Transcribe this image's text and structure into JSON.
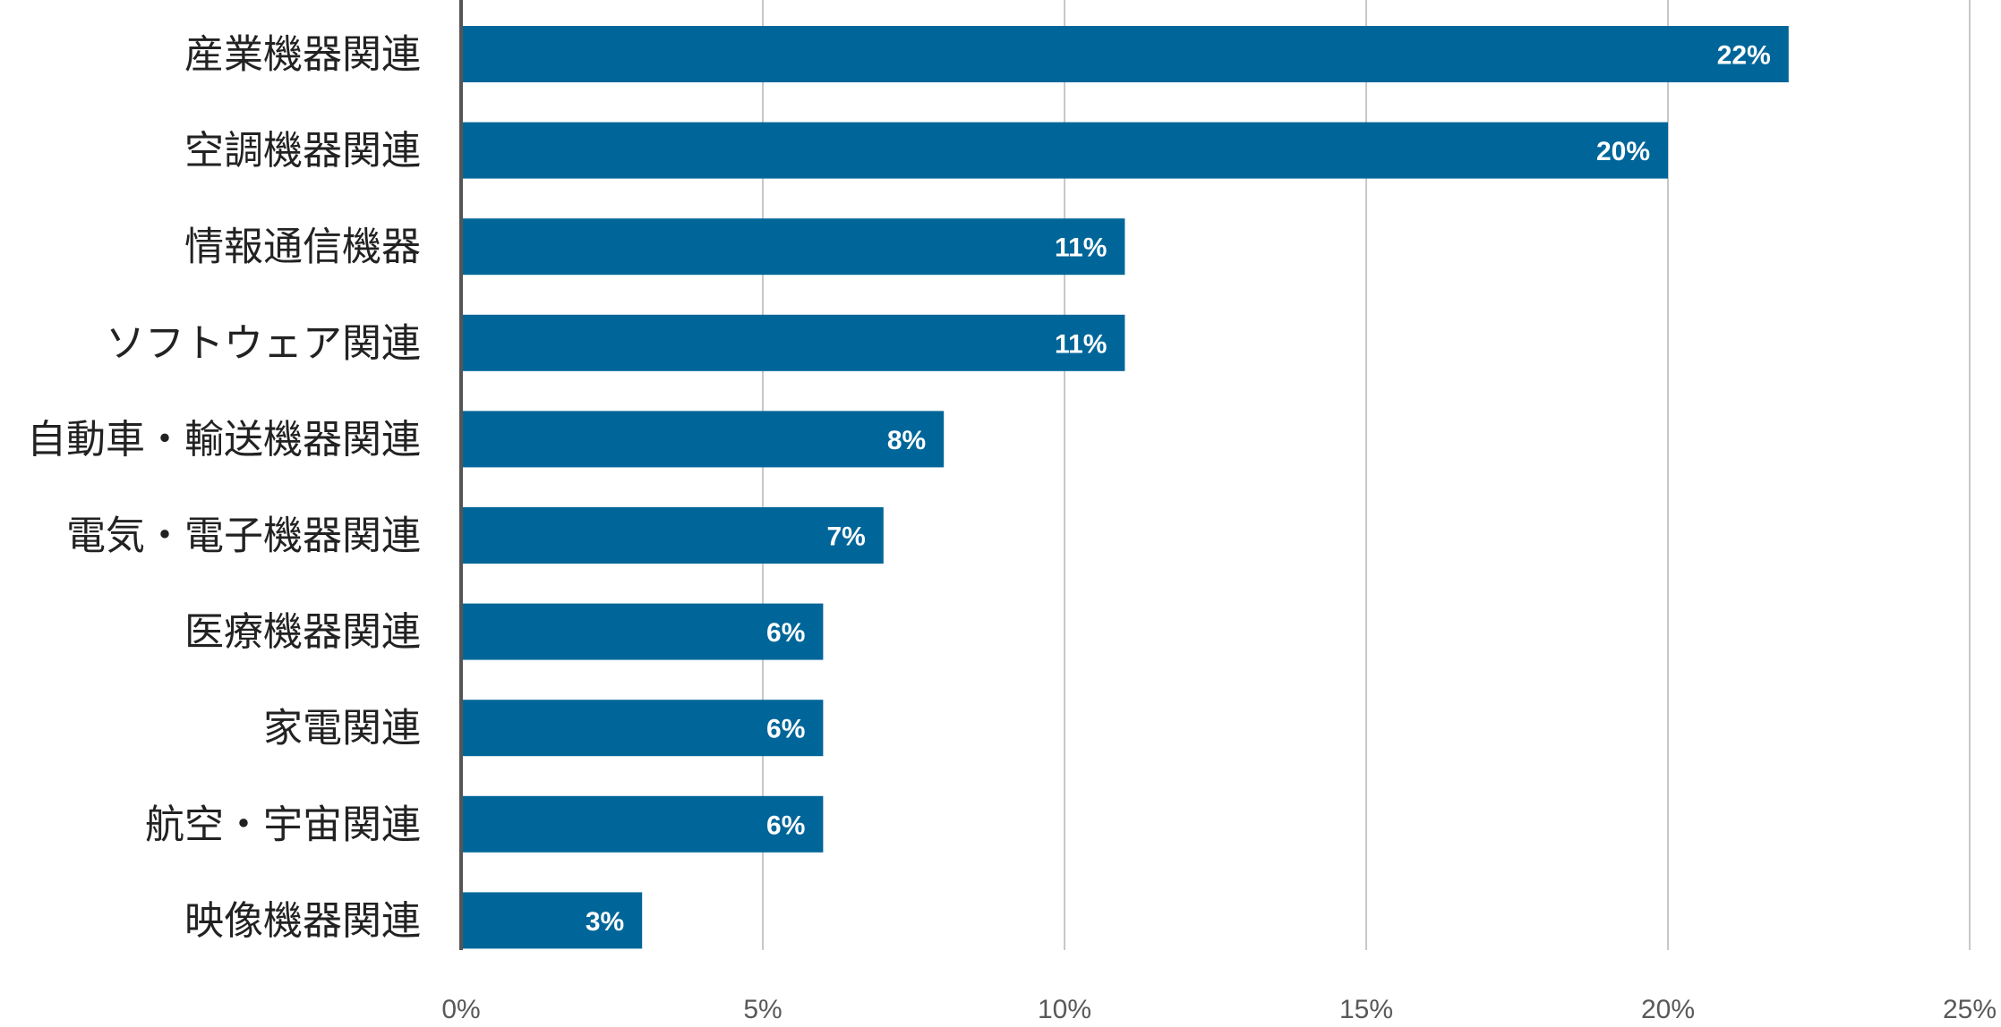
{
  "colors": {
    "bar": "#006699",
    "grid": "#c8c8c8",
    "axis": "#555555"
  },
  "chart_data": {
    "type": "bar",
    "orientation": "horizontal",
    "categories": [
      "産業機器関連",
      "空調機器関連",
      "情報通信機器",
      "ソフトウェア関連",
      "自動車・輸送機器関連",
      "電気・電子機器関連",
      "医療機器関連",
      "家電関連",
      "航空・宇宙関連",
      "映像機器関連"
    ],
    "values": [
      22,
      20,
      11,
      11,
      8,
      7,
      6,
      6,
      6,
      3
    ],
    "data_labels": [
      "22%",
      "20%",
      "11%",
      "11%",
      "8%",
      "7%",
      "6%",
      "6%",
      "6%",
      "3%"
    ],
    "xlim": [
      0,
      25
    ],
    "xticks": [
      0,
      5,
      10,
      15,
      20,
      25
    ],
    "xtick_labels": [
      "0%",
      "5%",
      "10%",
      "15%",
      "20%",
      "25%"
    ],
    "grid": "vertical",
    "legend": "none"
  }
}
